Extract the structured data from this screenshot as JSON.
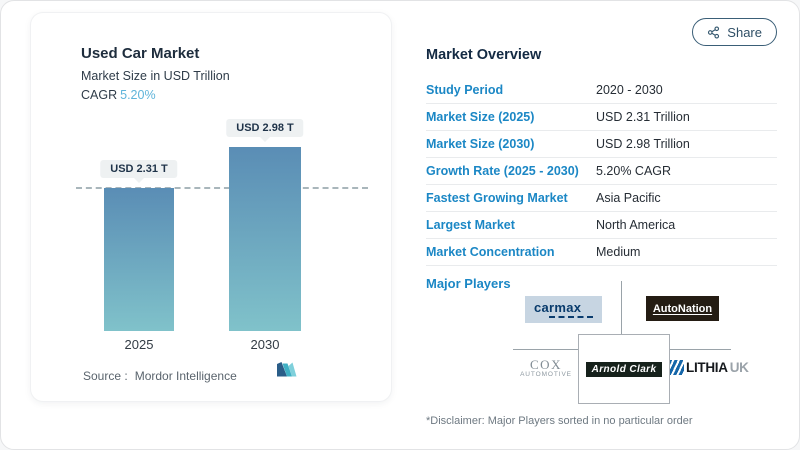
{
  "header": {
    "share_label": "Share"
  },
  "chart_panel": {
    "title": "Used Car Market",
    "subtitle": "Market Size in USD Trillion",
    "cagr_label": "CAGR",
    "cagr_value": "5.20%",
    "source_label": "Source :",
    "source_value": "Mordor Intelligence"
  },
  "chart_data": {
    "type": "bar",
    "title": "Used Car Market",
    "ylabel": "Market Size in USD Trillion",
    "categories": [
      "2025",
      "2030"
    ],
    "values": [
      2.31,
      2.98
    ],
    "value_labels": [
      "USD 2.31 T",
      "USD 2.98 T"
    ],
    "unit": "USD Trillion",
    "cagr": "5.20%",
    "reference_line_at": 2.31,
    "grid": false,
    "legend": "none",
    "bar_color_top": "#5a8db5",
    "bar_color_bottom": "#80c2ca"
  },
  "overview": {
    "title": "Market Overview",
    "rows": [
      {
        "label": "Study Period",
        "value": "2020 - 2030"
      },
      {
        "label": "Market Size (2025)",
        "value": "USD 2.31 Trillion"
      },
      {
        "label": "Market Size (2030)",
        "value": "USD 2.98 Trillion"
      },
      {
        "label": "Growth Rate (2025 - 2030)",
        "value": "5.20% CAGR"
      },
      {
        "label": "Fastest Growing Market",
        "value": "Asia Pacific"
      },
      {
        "label": "Largest Market",
        "value": "North America"
      },
      {
        "label": "Market Concentration",
        "value": "Medium"
      }
    ],
    "major_players_label": "Major Players",
    "players": [
      {
        "name": "CarMax",
        "logo_text": "carmax"
      },
      {
        "name": "AutoNation",
        "logo_text": "AutoNation"
      },
      {
        "name": "Cox Automotive",
        "logo_line1": "COX",
        "logo_line2": "AUTOMOTIVE"
      },
      {
        "name": "Arnold Clark",
        "logo_text": "Arnold Clark"
      },
      {
        "name": "Lithia UK",
        "logo_text": "LITHIA",
        "logo_suffix": "UK"
      }
    ],
    "disclaimer": "*Disclaimer: Major Players sorted in no particular order"
  },
  "colors": {
    "accent_blue": "#1b87c5",
    "cagr_blue": "#5fb4da",
    "dark_navy": "#1e2d3d",
    "bar_gradient_top": "#5a8db5",
    "bar_gradient_bottom": "#80c2ca",
    "label_pill_bg": "#eef1f2"
  }
}
